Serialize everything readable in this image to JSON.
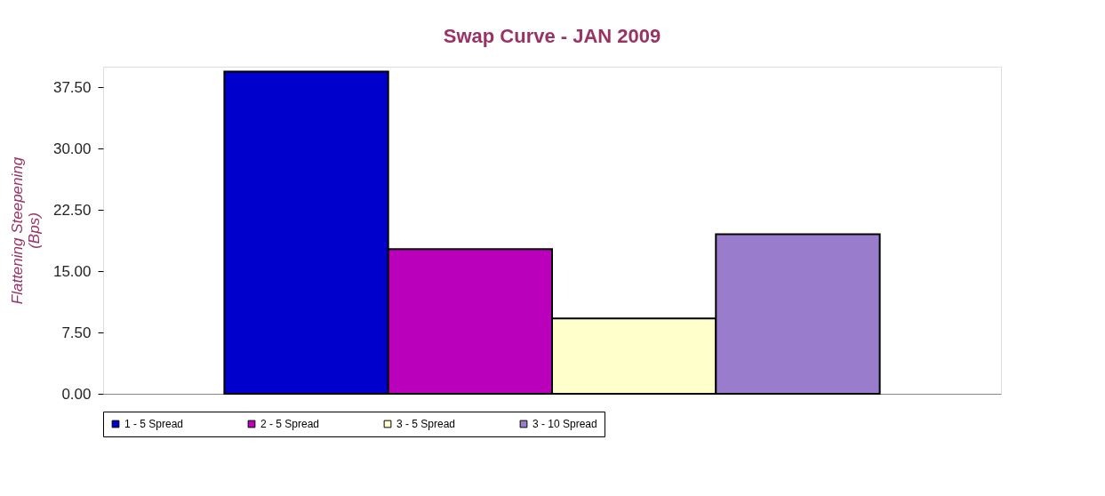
{
  "chart_data": {
    "type": "bar",
    "title": "Swap Curve -  JAN 2009",
    "ylabel": "Flattening      Steepening\n(Bps)",
    "categories": [
      null
    ],
    "series": [
      {
        "name": "1 - 5 Spread",
        "color": "#0000cc",
        "values": [
          39.4
        ]
      },
      {
        "name": "2 - 5 Spread",
        "color": "#bb00bb",
        "values": [
          17.7
        ]
      },
      {
        "name": "3 - 5 Spread",
        "color": "#ffffcc",
        "values": [
          9.2
        ]
      },
      {
        "name": "3 - 10 Spread",
        "color": "#9a7ccc",
        "values": [
          19.5
        ]
      }
    ],
    "ylim": [
      0,
      40
    ],
    "yticks": [
      {
        "value": 0,
        "label": "0.00"
      },
      {
        "value": 7.5,
        "label": "7.50"
      },
      {
        "value": 15,
        "label": "15.00"
      },
      {
        "value": 22.5,
        "label": "22.50"
      },
      {
        "value": 30,
        "label": "30.00"
      },
      {
        "value": 37.5,
        "label": "37.50"
      }
    ],
    "grid": false,
    "legend": "bottom"
  }
}
